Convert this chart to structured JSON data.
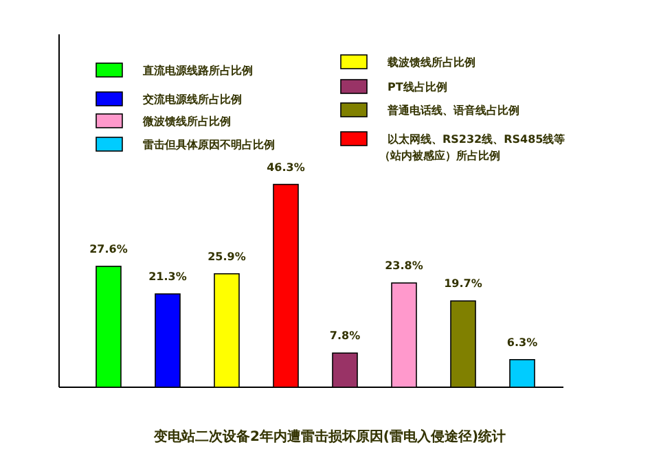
{
  "chart_data": {
    "type": "bar",
    "title": "变电站二次设备2年内遭雷击损坏原因(雷电入侵途径)统计",
    "categories": [
      null,
      null,
      null,
      null,
      null,
      null,
      null,
      null
    ],
    "stacked": true,
    "legend": "top",
    "series": [
      {
        "name": "直流电源线路所占比例",
        "color": "#00ff00",
        "values": [
          27.6,
          null,
          null,
          null,
          null,
          null,
          null,
          null
        ],
        "value_labels": [
          "27.6%",
          null,
          null,
          null,
          null,
          null,
          null,
          null
        ]
      },
      {
        "name": "交流电源线所占比例",
        "color": "#0000ff",
        "values": [
          null,
          21.3,
          null,
          null,
          null,
          null,
          null,
          null
        ],
        "value_labels": [
          null,
          "21.3%",
          null,
          null,
          null,
          null,
          null,
          null
        ]
      },
      {
        "name": "微波馈线所占比例",
        "color": "#ff99cc",
        "values": [
          null,
          null,
          null,
          null,
          null,
          23.8,
          null,
          null
        ],
        "value_labels": [
          null,
          null,
          null,
          null,
          null,
          "23.8%",
          null,
          null
        ]
      },
      {
        "name": "雷击但具体原因不明占比例",
        "color": "#00ccff",
        "values": [
          null,
          null,
          null,
          null,
          null,
          null,
          null,
          6.3
        ],
        "value_labels": [
          null,
          null,
          null,
          null,
          null,
          null,
          null,
          "6.3%"
        ]
      },
      {
        "name": "载波馈线所占比例",
        "color": "#ffff00",
        "values": [
          null,
          null,
          25.9,
          null,
          null,
          null,
          null,
          null
        ],
        "value_labels": [
          null,
          null,
          "25.9%",
          null,
          null,
          null,
          null,
          null
        ]
      },
      {
        "name": "PT线占比例",
        "color": "#993366",
        "values": [
          null,
          null,
          null,
          null,
          7.8,
          null,
          null,
          null
        ],
        "value_labels": [
          null,
          null,
          null,
          null,
          "7.8%",
          null,
          null,
          null
        ]
      },
      {
        "name": "普通电话线、语音线占比例",
        "color": "#808000",
        "values": [
          null,
          null,
          null,
          null,
          null,
          null,
          19.7,
          null
        ],
        "value_labels": [
          null,
          null,
          null,
          null,
          null,
          null,
          "19.7%",
          null
        ]
      },
      {
        "name": "以太网线、RS232线、RS485线等（站内被感应）所占比例",
        "color": "#ff0000",
        "values": [
          null,
          null,
          null,
          46.3,
          null,
          null,
          null,
          null
        ],
        "value_labels": [
          null,
          null,
          null,
          "46.3%",
          null,
          null,
          null,
          null
        ]
      }
    ]
  }
}
